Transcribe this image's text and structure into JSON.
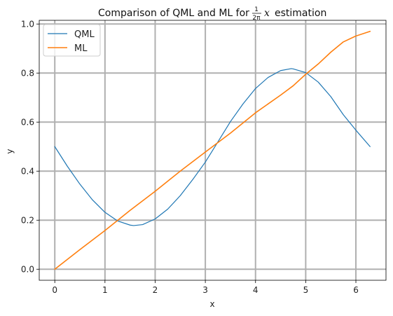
{
  "chart_data": {
    "type": "line",
    "title": "Comparison of QML and ML for",
    "title_math": "x",
    "title_suffix": "estimation",
    "title_frac_num": "1",
    "title_frac_den": "2π",
    "xlabel": "x",
    "ylabel": "y",
    "xlim": [
      -0.31,
      6.6
    ],
    "ylim": [
      -0.045,
      1.015
    ],
    "xticks": [
      "0",
      "1",
      "2",
      "3",
      "4",
      "5",
      "6"
    ],
    "yticks": [
      "0.0",
      "0.2",
      "0.4",
      "0.6",
      "0.8",
      "1.0"
    ],
    "grid": true,
    "legend_position": "upper-left",
    "series": [
      {
        "name": "QML",
        "color": "#1f77b4",
        "x": [
          0,
          0.25,
          0.5,
          0.75,
          1.0,
          1.25,
          1.5,
          1.571,
          1.75,
          2.0,
          2.25,
          2.5,
          2.75,
          3.0,
          3.25,
          3.5,
          3.75,
          4.0,
          4.25,
          4.5,
          4.712,
          4.75,
          5.0,
          5.25,
          5.5,
          5.75,
          6.0,
          6.283
        ],
        "y": [
          0.5,
          0.42,
          0.347,
          0.283,
          0.232,
          0.197,
          0.18,
          0.178,
          0.182,
          0.205,
          0.245,
          0.3,
          0.366,
          0.437,
          0.519,
          0.602,
          0.674,
          0.737,
          0.782,
          0.81,
          0.818,
          0.817,
          0.802,
          0.763,
          0.704,
          0.63,
          0.567,
          0.5
        ]
      },
      {
        "name": "ML",
        "color": "#ff7f0e",
        "x": [
          0,
          0.5,
          1.0,
          1.5,
          2.0,
          2.5,
          3.0,
          3.5,
          4.0,
          4.5,
          4.75,
          5.0,
          5.25,
          5.5,
          5.75,
          6.0,
          6.283
        ],
        "y": [
          0.0,
          0.08,
          0.158,
          0.24,
          0.318,
          0.4,
          0.478,
          0.555,
          0.638,
          0.71,
          0.748,
          0.795,
          0.837,
          0.885,
          0.927,
          0.951,
          0.97
        ]
      }
    ]
  }
}
